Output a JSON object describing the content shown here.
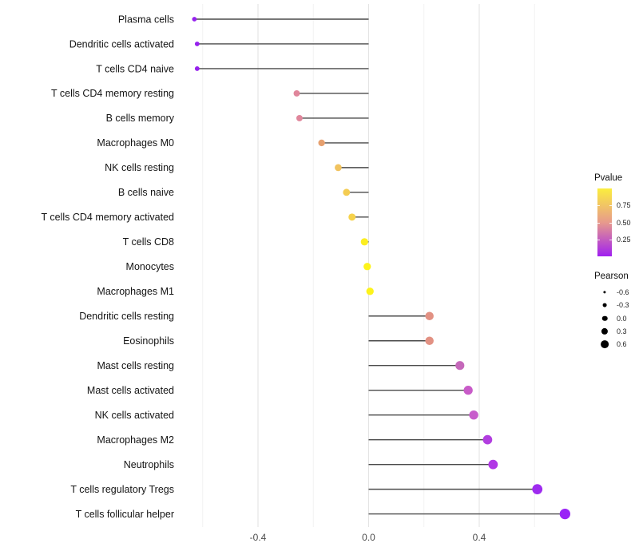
{
  "chart_data": {
    "type": "scatter",
    "subtype": "lollipop",
    "orientation": "horizontal",
    "title": "",
    "xlabel": "",
    "ylabel": "",
    "categories": [
      "Plasma cells",
      "Dendritic cells activated",
      "T cells CD4 naive",
      "T cells CD4 memory resting",
      "B cells memory",
      "Macrophages M0",
      "NK cells resting",
      "B cells naive",
      "T cells CD4 memory activated",
      "T cells CD8",
      "Monocytes",
      "Macrophages M1",
      "Dendritic cells resting",
      "Eosinophils",
      "Mast cells resting",
      "Mast cells activated",
      "NK cells activated",
      "Macrophages M2",
      "Neutrophils",
      "T cells regulatory  Tregs",
      "T cells follicular helper"
    ],
    "series": [
      {
        "name": "Pearson",
        "values": [
          -0.63,
          -0.62,
          -0.62,
          -0.26,
          -0.25,
          -0.17,
          -0.11,
          -0.08,
          -0.06,
          -0.015,
          -0.005,
          0.005,
          0.22,
          0.22,
          0.33,
          0.36,
          0.38,
          0.43,
          0.45,
          0.61,
          0.71
        ],
        "point_colors": [
          "#9621EE",
          "#9621EE",
          "#9621EE",
          "#E0869B",
          "#E0869B",
          "#E6A06F",
          "#F1C35F",
          "#F4CC52",
          "#F6D24B",
          "#FCEE21",
          "#FDF31B",
          "#FDF31B",
          "#E29183",
          "#E29183",
          "#C568BA",
          "#C85BC8",
          "#C75CCB",
          "#B23EE0",
          "#B138E5",
          "#9E2BEF",
          "#9A23F6"
        ]
      }
    ],
    "x_ticks": [
      "-0.4",
      "0.0",
      "0.4"
    ],
    "x_tick_values": [
      -0.4,
      0.0,
      0.4
    ],
    "xlim": [
      -0.64,
      0.78
    ],
    "grid": {
      "on": true,
      "major_values": [
        -0.4,
        0.0,
        0.4
      ],
      "minor_values": [
        -0.6,
        -0.2,
        0.2,
        0.6
      ],
      "major_color": "#E4E4E4",
      "minor_color": "#F2F2F2"
    },
    "baseline_x": 0.0,
    "stem_color": "#4A4A4A",
    "axis_text_color": "#4D4D4D",
    "category_text_color": "#141414",
    "legend_position": "right"
  },
  "legend": {
    "pvalue": {
      "title": "Pvalue",
      "ticks": [
        {
          "label": "0.75",
          "value": 0.75
        },
        {
          "label": "0.50",
          "value": 0.5
        },
        {
          "label": "0.25",
          "value": 0.25
        }
      ],
      "range": [
        0,
        1
      ],
      "color_low": "#A020F0",
      "color_mid": "#E79A8C",
      "color_high": "#FBEE3E"
    },
    "pearson": {
      "title": "Pearson",
      "items": [
        {
          "label": "-0.6",
          "value": -0.6
        },
        {
          "label": "-0.3",
          "value": -0.3
        },
        {
          "label": "0.0",
          "value": 0.0
        },
        {
          "label": "0.3",
          "value": 0.3
        },
        {
          "label": "0.6",
          "value": 0.6
        }
      ]
    }
  }
}
